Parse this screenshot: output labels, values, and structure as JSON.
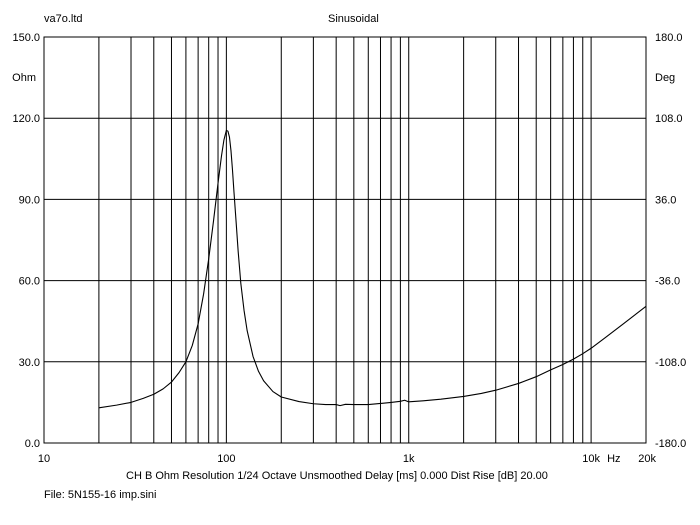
{
  "header": {
    "left": "va7o.ltd",
    "center": "Sinusoidal"
  },
  "footer": {
    "info": "CH B   Ohm   Resolution 1/24 Octave   Unsmoothed   Delay [ms] 0.000   Dist Rise [dB] 20.00",
    "file": "File: 5N155-16 imp.sini"
  },
  "chart_data": {
    "type": "line",
    "title": "Sinusoidal",
    "xscale": "log",
    "xlim": [
      10,
      20000
    ],
    "ylim": [
      0,
      150
    ],
    "y2lim": [
      -180,
      180
    ],
    "ylabel": "Ohm",
    "y2label": "Deg",
    "xunit": "Hz",
    "grid": true,
    "x_tick_labels": [
      {
        "value": 10,
        "label": "10"
      },
      {
        "value": 100,
        "label": "100"
      },
      {
        "value": 1000,
        "label": "1k"
      },
      {
        "value": 10000,
        "label": "10k"
      },
      {
        "value": 20000,
        "label": "20k"
      }
    ],
    "y_tick_labels": [
      "0.0",
      "30.0",
      "60.0",
      "90.0",
      "120.0",
      "150.0"
    ],
    "y2_tick_labels": [
      "-180.0",
      "-108.0",
      "-36.0",
      "36.0",
      "108.0",
      "180.0"
    ],
    "series": [
      {
        "unit": "Ohm",
        "color": "#000000",
        "x": [
          20,
          25,
          30,
          35,
          40,
          45,
          50,
          55,
          60,
          65,
          70,
          75,
          80,
          85,
          90,
          94,
          97,
          100,
          102,
          104,
          106,
          108,
          110,
          113,
          116,
          120,
          125,
          130,
          140,
          150,
          160,
          180,
          200,
          250,
          300,
          350,
          400,
          420,
          450,
          500,
          600,
          700,
          800,
          900,
          950,
          1000,
          1200,
          1500,
          2000,
          2500,
          3000,
          4000,
          5000,
          6000,
          7000,
          8000,
          9000,
          10000,
          12000,
          15000,
          20000
        ],
        "y": [
          13,
          14,
          15,
          16.5,
          18,
          20,
          22.5,
          26,
          30,
          36,
          44,
          55,
          68,
          82,
          96,
          106,
          112,
          115.5,
          115.2,
          113,
          108,
          101,
          93,
          82,
          71,
          59,
          49,
          41.5,
          32,
          26.5,
          23,
          19,
          17,
          15.3,
          14.5,
          14.2,
          14.2,
          13.8,
          14.3,
          14.2,
          14.2,
          14.6,
          15,
          15.4,
          15.8,
          15.2,
          15.6,
          16.2,
          17.2,
          18.3,
          19.5,
          22,
          24.5,
          27,
          29,
          31,
          33,
          35,
          39,
          44,
          50.5
        ]
      }
    ]
  }
}
